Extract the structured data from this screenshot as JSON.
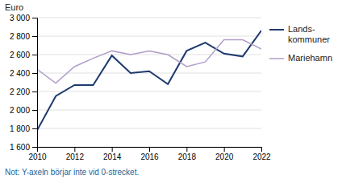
{
  "chart_data": {
    "type": "line",
    "ylabel": "Euro",
    "annotations": [
      "Not: Y-axeln börjar inte vid 0-strecket."
    ],
    "x": [
      2010,
      2011,
      2012,
      2013,
      2014,
      2015,
      2016,
      2017,
      2018,
      2019,
      2020,
      2021,
      2022
    ],
    "series": [
      {
        "name": "Lands-\nkommuner",
        "color": "#1e3a6e",
        "values": [
          1780,
          2150,
          2270,
          2270,
          2590,
          2400,
          2420,
          2280,
          2640,
          2730,
          2610,
          2580,
          2860
        ]
      },
      {
        "name": "Mariehamn",
        "color": "#b09ec8",
        "values": [
          2440,
          2290,
          2470,
          2560,
          2640,
          2600,
          2640,
          2600,
          2470,
          2520,
          2760,
          2760,
          2660
        ]
      }
    ],
    "xlim": [
      2010,
      2022
    ],
    "xticks": [
      2010,
      2012,
      2014,
      2016,
      2018,
      2020,
      2022
    ],
    "ylim": [
      1600,
      3000
    ],
    "yticks": [
      {
        "value": 1600,
        "label": "1 600"
      },
      {
        "value": 1800,
        "label": "1 800"
      },
      {
        "value": 2000,
        "label": "2 000"
      },
      {
        "value": 2200,
        "label": "2 200"
      },
      {
        "value": 2400,
        "label": "2 400"
      },
      {
        "value": 2600,
        "label": "2 600"
      },
      {
        "value": 2800,
        "label": "2 800"
      },
      {
        "value": 3000,
        "label": "3 000"
      }
    ],
    "grid": true,
    "legend": "right"
  }
}
